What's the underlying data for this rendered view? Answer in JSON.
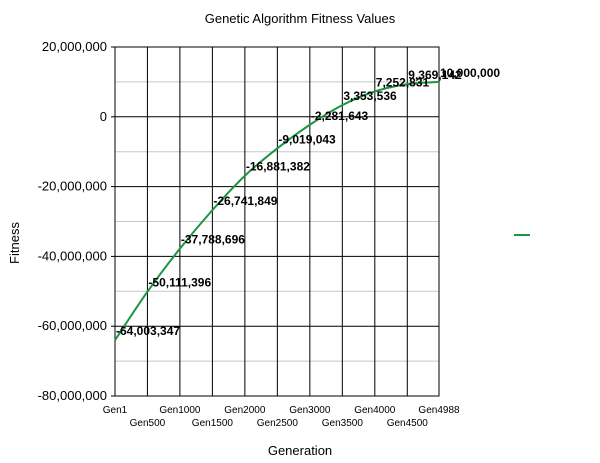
{
  "chart_data": {
    "type": "line",
    "title": "Genetic Algorithm Fitness Values",
    "xlabel": "Generation",
    "ylabel": "Fitness",
    "ylim": [
      -80000000,
      20000000
    ],
    "yticks": [
      20000000,
      0,
      -20000000,
      -40000000,
      -60000000,
      -80000000
    ],
    "ytick_labels": [
      "20,000,000",
      "0",
      "-20,000,000",
      "-40,000,000",
      "-60,000,000",
      "-80,000,000"
    ],
    "xticks": [
      1,
      500,
      1000,
      1500,
      2000,
      2500,
      3000,
      3500,
      4000,
      4500,
      4988
    ],
    "xtick_labels": [
      "Gen1",
      "Gen500",
      "Gen1000",
      "Gen1500",
      "Gen2000",
      "Gen2500",
      "Gen3000",
      "Gen3500",
      "Gen4000",
      "Gen4500",
      "Gen4988"
    ],
    "grid": true,
    "legend": "right",
    "series": [
      {
        "color": "#1a9641",
        "x": [
          1,
          500,
          1000,
          1500,
          2000,
          2500,
          3000,
          3500,
          4000,
          4500,
          4988
        ],
        "values": [
          -64003347,
          -50111396,
          -37788696,
          -26741849,
          -16881382,
          -9019043,
          -2281643,
          3353536,
          7252831,
          9369142,
          10000000
        ],
        "labels": [
          "-64,003,347",
          "-50,111,396",
          "-37,788,696",
          "-26,741,849",
          "-16,881,382",
          "-9,019,043",
          "-2,281,643",
          "3,353,536",
          "7,252,831",
          "9,369,142",
          "10,000,000"
        ]
      }
    ]
  }
}
